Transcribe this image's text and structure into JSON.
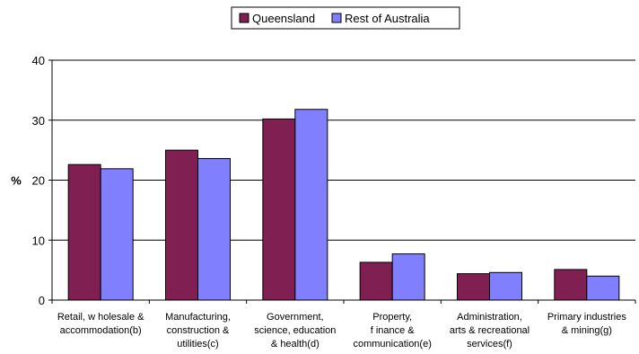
{
  "chart_data": {
    "type": "bar",
    "title": "",
    "xlabel": "",
    "ylabel": "%",
    "ylim": [
      0,
      40
    ],
    "yticks": [
      0,
      10,
      20,
      30,
      40
    ],
    "grid": true,
    "legend_position": "top-center",
    "categories": [
      [
        "Retail, w holesale &",
        "accommodation(b)"
      ],
      [
        "Manufacturing,",
        "construction &",
        "utilities(c)"
      ],
      [
        "Government,",
        "science, education",
        "& health(d)"
      ],
      [
        "Property,",
        "f inance &",
        "communication(e)"
      ],
      [
        "Administration,",
        "arts & recreational",
        "services(f)"
      ],
      [
        "Primary industries",
        "& mining(g)"
      ]
    ],
    "series": [
      {
        "name": "Queensland",
        "color": "#7f1f52",
        "values": [
          22.6,
          25.0,
          30.2,
          6.3,
          4.4,
          5.1
        ]
      },
      {
        "name": "Rest of Australia",
        "color": "#8080ff",
        "values": [
          21.9,
          23.6,
          31.8,
          7.7,
          4.6,
          4.0
        ]
      }
    ]
  }
}
